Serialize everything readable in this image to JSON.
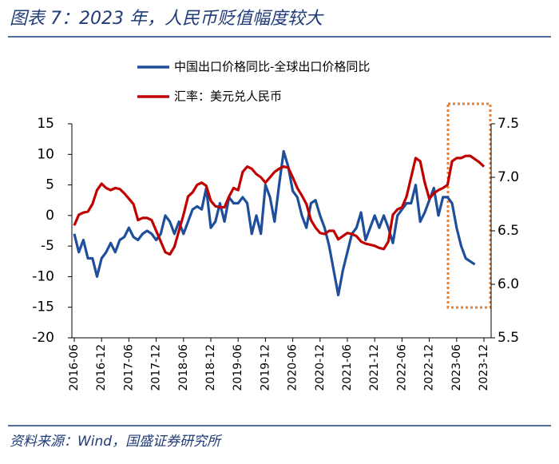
{
  "chart_data": {
    "type": "line",
    "title": "图表 7：2023 年，人民币贬值幅度较大",
    "source": "资料来源：Wind，国盛证券研究所",
    "categories": [
      "2016-06",
      null,
      null,
      null,
      null,
      null,
      "2016-12",
      null,
      null,
      null,
      null,
      null,
      "2017-06",
      null,
      null,
      null,
      null,
      null,
      "2017-12",
      null,
      null,
      null,
      null,
      null,
      "2018-06",
      null,
      null,
      null,
      null,
      null,
      "2018-12",
      null,
      null,
      null,
      null,
      null,
      "2019-06",
      null,
      null,
      null,
      null,
      null,
      "2019-12",
      null,
      null,
      null,
      null,
      null,
      "2020-06",
      null,
      null,
      null,
      null,
      null,
      "2020-12",
      null,
      null,
      null,
      null,
      null,
      "2021-06",
      null,
      null,
      null,
      null,
      null,
      "2021-12",
      null,
      null,
      null,
      null,
      null,
      "2022-06",
      null,
      null,
      null,
      null,
      null,
      "2022-12",
      null,
      null,
      null,
      null,
      null,
      "2023-06",
      null,
      null,
      null,
      null,
      null,
      "2023-12"
    ],
    "series": [
      {
        "name": "中国出口价格同比-全球出口价格同比",
        "color": "#1f4e9a",
        "axis": "y",
        "values": [
          -3,
          -6,
          -4,
          -7,
          -7,
          -10,
          -7,
          -6,
          -4.5,
          -6,
          -4,
          -3.5,
          -2,
          -3.5,
          -4,
          -3,
          -2.5,
          -3,
          -4,
          -3,
          0,
          -1,
          -3,
          -1,
          -3,
          -1,
          1,
          1.5,
          1,
          4.5,
          -2,
          -1,
          2,
          -1,
          3,
          2,
          2,
          3,
          2,
          -3,
          0,
          -3,
          5,
          3,
          -1,
          5,
          10.5,
          8,
          4,
          3,
          0,
          -2,
          2,
          2.5,
          0,
          -2,
          -5,
          -9,
          -13,
          -9,
          -6,
          -3,
          -2,
          0.5,
          -4,
          -2,
          0,
          -2,
          0,
          -2,
          -4.5,
          0,
          1,
          2,
          2,
          5,
          -1,
          0.5,
          2.5,
          4.5,
          0,
          3,
          3,
          2,
          -2,
          -5,
          -7,
          -7.5,
          -8,
          null,
          null
        ]
      },
      {
        "name": "汇率：美元兑人民币",
        "color": "#c00000",
        "axis": "y2",
        "values": [
          6.55,
          6.65,
          6.67,
          6.68,
          6.75,
          6.88,
          6.94,
          6.9,
          6.88,
          6.9,
          6.89,
          6.85,
          6.8,
          6.75,
          6.6,
          6.62,
          6.62,
          6.6,
          6.5,
          6.4,
          6.3,
          6.28,
          6.35,
          6.5,
          6.65,
          6.82,
          6.86,
          6.93,
          6.95,
          6.92,
          6.78,
          6.73,
          6.72,
          6.72,
          6.82,
          6.9,
          6.88,
          7.05,
          7.1,
          7.08,
          7.03,
          7.0,
          6.95,
          7.0,
          7.05,
          7.08,
          7.1,
          7.09,
          7.0,
          6.9,
          6.83,
          6.75,
          6.6,
          6.53,
          6.48,
          6.47,
          6.5,
          6.5,
          6.42,
          6.45,
          6.48,
          6.47,
          6.45,
          6.4,
          6.38,
          6.37,
          6.36,
          6.34,
          6.33,
          6.4,
          6.65,
          6.7,
          6.72,
          6.82,
          7.0,
          7.18,
          7.15,
          6.95,
          6.8,
          6.85,
          6.88,
          6.9,
          6.93,
          7.15,
          7.18,
          7.18,
          7.2,
          7.2,
          7.17,
          7.14,
          7.1
        ]
      }
    ],
    "ylim": [
      -20,
      15
    ],
    "yticks": [
      -20,
      -15,
      -10,
      -5,
      0,
      5,
      10,
      15
    ],
    "y2lim": [
      5.5,
      7.5
    ],
    "y2ticks": [
      5.5,
      {
        "value": 6,
        "label": "6.0"
      },
      6.5,
      {
        "value": 7,
        "label": "7.0"
      },
      7.5
    ]
  }
}
